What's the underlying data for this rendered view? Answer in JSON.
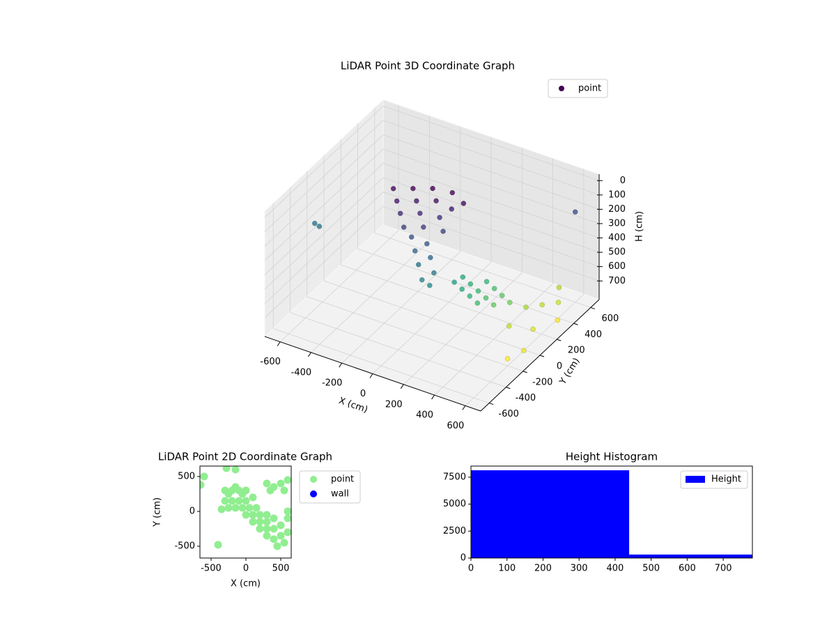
{
  "chart_data": [
    {
      "type": "scatter3d",
      "title": "LiDAR Point 3D Coordinate Graph",
      "xlabel": "X (cm)",
      "ylabel": "Y (cm)",
      "zlabel": "H (cm)",
      "colormap": "viridis",
      "legend": "upper right",
      "series": [
        {
          "name": "point",
          "color": "#440154"
        }
      ],
      "x": [
        -250,
        -150,
        -50,
        50,
        150,
        -200,
        -100,
        0,
        100,
        -150,
        -50,
        50,
        -100,
        0,
        100,
        -50,
        50,
        0,
        100,
        50,
        150,
        100,
        150,
        200,
        250,
        300,
        350,
        200,
        250,
        300,
        350,
        400,
        300,
        350,
        400,
        450,
        500,
        550,
        600,
        500,
        600,
        650,
        550,
        650,
        600,
        -650,
        -620,
        600
      ],
      "y": [
        0,
        50,
        100,
        150,
        100,
        -50,
        0,
        50,
        50,
        -100,
        -50,
        0,
        -150,
        -100,
        -50,
        -150,
        -150,
        -200,
        -200,
        -250,
        -250,
        -300,
        -300,
        -100,
        -100,
        -100,
        -100,
        0,
        0,
        0,
        0,
        0,
        100,
        100,
        100,
        100,
        200,
        300,
        400,
        0,
        100,
        -100,
        500,
        300,
        -200,
        -200,
        -200,
        600
      ],
      "z": [
        20,
        10,
        0,
        20,
        30,
        60,
        50,
        40,
        60,
        100,
        90,
        110,
        150,
        140,
        160,
        200,
        210,
        250,
        260,
        300,
        320,
        360,
        380,
        450,
        480,
        510,
        540,
        470,
        500,
        530,
        560,
        590,
        520,
        550,
        580,
        610,
        680,
        700,
        720,
        700,
        740,
        760,
        690,
        770,
        780,
        300,
        310,
        200
      ],
      "xlim": [
        -700,
        700
      ],
      "ylim": [
        -700,
        700
      ],
      "zlim": [
        830,
        -45
      ],
      "xticks": [
        -600,
        -400,
        -200,
        0,
        200,
        400,
        600
      ],
      "yticks": [
        -600,
        -400,
        -200,
        0,
        200,
        400,
        600
      ],
      "zticks": [
        0,
        100,
        200,
        300,
        400,
        500,
        600,
        700
      ]
    },
    {
      "type": "scatter",
      "title": "LiDAR Point 2D Coordinate Graph",
      "xlabel": "X (cm)",
      "ylabel": "Y (cm)",
      "legend": "outside right",
      "xlim": [
        -660,
        650
      ],
      "ylim": [
        -670,
        650
      ],
      "xticks": [
        -500,
        0,
        500
      ],
      "yticks": [
        -500,
        0,
        500
      ],
      "series": [
        {
          "name": "point",
          "color": "#90ee90",
          "x": [
            -300,
            -250,
            -200,
            -150,
            -100,
            -50,
            0,
            -300,
            -200,
            -100,
            0,
            100,
            -250,
            -150,
            -50,
            50,
            150,
            -350,
            0,
            100,
            200,
            300,
            100,
            200,
            300,
            400,
            200,
            300,
            400,
            500,
            300,
            400,
            500,
            600,
            450,
            550,
            600,
            600,
            300,
            400,
            500,
            600,
            350,
            550,
            -400,
            -600,
            -650,
            -280,
            -150
          ],
          "y": [
            300,
            250,
            300,
            350,
            300,
            250,
            300,
            150,
            150,
            150,
            150,
            200,
            50,
            50,
            50,
            50,
            50,
            30,
            -50,
            -50,
            -50,
            -50,
            -150,
            -150,
            -150,
            -100,
            -250,
            -250,
            -250,
            -200,
            -350,
            -400,
            -350,
            -300,
            -500,
            -450,
            -100,
            0,
            400,
            350,
            400,
            450,
            300,
            300,
            -480,
            500,
            380,
            620,
            600
          ]
        },
        {
          "name": "wall",
          "color": "#0000ff",
          "x": [],
          "y": []
        }
      ]
    },
    {
      "type": "histogram",
      "title": "Height Histogram",
      "legend": "upper right",
      "series": [
        {
          "name": "Height",
          "color": "#0000ff"
        }
      ],
      "bins": [
        0,
        439,
        878
      ],
      "values": [
        8140,
        323
      ],
      "xlim": [
        0,
        781
      ],
      "ylim": [
        0,
        8530
      ],
      "xticks": [
        0,
        100,
        200,
        300,
        400,
        500,
        600,
        700
      ],
      "yticks": [
        0,
        2500,
        5000,
        7500
      ]
    }
  ]
}
